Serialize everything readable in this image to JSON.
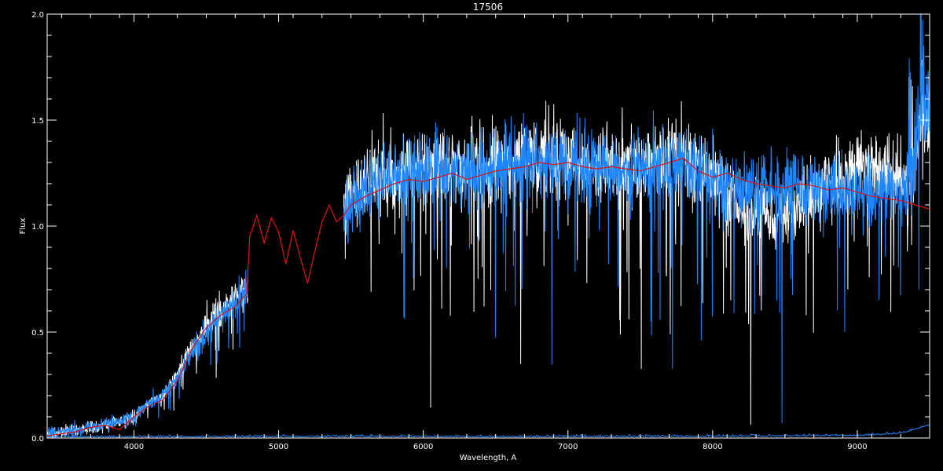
{
  "chart_data": {
    "type": "line",
    "title": "17506",
    "xlabel": "Wavelength, A",
    "ylabel": "Flux",
    "xlim": [
      3400,
      9500
    ],
    "ylim": [
      0.0,
      2.0
    ],
    "x_ticks": [
      4000,
      5000,
      6000,
      7000,
      8000,
      9000
    ],
    "x_tick_labels": [
      "4000",
      "5000",
      "6000",
      "7000",
      "8000",
      "9000"
    ],
    "y_ticks": [
      0.0,
      0.5,
      1.0,
      1.5,
      2.0
    ],
    "y_tick_labels": [
      "0.0",
      "0.5",
      "1.0",
      "1.5",
      "2.0"
    ],
    "grid": false,
    "background": "#000000",
    "series": [
      {
        "color": "#ffffff",
        "style": "noisy spectrum",
        "segments": [
          [
            3400,
            4790
          ],
          [
            5450,
            9500
          ]
        ],
        "x": [
          3400,
          3600,
          3800,
          4000,
          4100,
          4200,
          4300,
          4400,
          4500,
          4600,
          4700,
          4790,
          5450,
          5500,
          5600,
          5700,
          5800,
          5900,
          6000,
          6200,
          6400,
          6600,
          6800,
          6900,
          7000,
          7200,
          7400,
          7600,
          7700,
          7800,
          7900,
          8000,
          8100,
          8200,
          8300,
          8400,
          8500,
          8600,
          8700,
          8800,
          8900,
          9000,
          9100,
          9200,
          9300,
          9400,
          9450,
          9500
        ],
        "y": [
          0.02,
          0.04,
          0.06,
          0.1,
          0.16,
          0.2,
          0.3,
          0.42,
          0.52,
          0.6,
          0.65,
          0.72,
          1.1,
          1.15,
          1.2,
          1.24,
          1.25,
          1.26,
          1.26,
          1.27,
          1.28,
          1.3,
          1.33,
          1.34,
          1.31,
          1.3,
          1.29,
          1.3,
          1.32,
          1.33,
          1.3,
          1.25,
          1.15,
          1.08,
          1.06,
          1.05,
          1.06,
          1.1,
          1.15,
          1.2,
          1.22,
          1.25,
          1.28,
          1.25,
          1.2,
          1.3,
          1.55,
          1.4
        ]
      },
      {
        "color": "#1e86ff",
        "style": "noisy spectrum",
        "segments": [
          [
            3400,
            4790
          ],
          [
            5450,
            9500
          ]
        ],
        "x": [
          3400,
          3600,
          3800,
          4000,
          4100,
          4200,
          4300,
          4400,
          4500,
          4600,
          4700,
          4790,
          5450,
          5500,
          5600,
          5700,
          5800,
          5900,
          6000,
          6200,
          6400,
          6600,
          6800,
          6900,
          7000,
          7200,
          7400,
          7600,
          7700,
          7800,
          7900,
          8000,
          8100,
          8200,
          8300,
          8400,
          8500,
          8600,
          8700,
          8800,
          8900,
          9000,
          9100,
          9200,
          9300,
          9400,
          9450,
          9500
        ],
        "y": [
          0.02,
          0.04,
          0.06,
          0.1,
          0.16,
          0.2,
          0.28,
          0.4,
          0.5,
          0.58,
          0.63,
          0.7,
          1.05,
          1.12,
          1.18,
          1.22,
          1.24,
          1.24,
          1.25,
          1.26,
          1.27,
          1.29,
          1.3,
          1.3,
          1.29,
          1.28,
          1.27,
          1.28,
          1.3,
          1.3,
          1.25,
          1.22,
          1.2,
          1.18,
          1.17,
          1.18,
          1.18,
          1.19,
          1.18,
          1.18,
          1.16,
          1.15,
          1.14,
          1.15,
          1.13,
          1.3,
          1.6,
          1.5
        ]
      },
      {
        "color": "#e01010",
        "style": "smooth model",
        "x": [
          3400,
          3600,
          3700,
          3800,
          3900,
          4000,
          4100,
          4200,
          4300,
          4400,
          4500,
          4600,
          4700,
          4780,
          4800,
          4850,
          4900,
          4950,
          5000,
          5050,
          5100,
          5150,
          5200,
          5250,
          5300,
          5350,
          5400,
          5450,
          5500,
          5600,
          5700,
          5800,
          5900,
          6000,
          6100,
          6200,
          6300,
          6400,
          6500,
          6600,
          6700,
          6800,
          6900,
          7000,
          7100,
          7200,
          7300,
          7400,
          7500,
          7600,
          7700,
          7800,
          7900,
          8000,
          8100,
          8200,
          8300,
          8400,
          8500,
          8600,
          8700,
          8800,
          8900,
          9000,
          9100,
          9200,
          9300,
          9400,
          9500
        ],
        "y": [
          0.01,
          0.03,
          0.05,
          0.06,
          0.04,
          0.1,
          0.15,
          0.18,
          0.27,
          0.42,
          0.52,
          0.58,
          0.62,
          0.68,
          0.95,
          1.05,
          0.92,
          1.04,
          0.97,
          0.82,
          0.98,
          0.85,
          0.73,
          0.88,
          1.02,
          1.1,
          1.02,
          1.05,
          1.1,
          1.14,
          1.17,
          1.2,
          1.22,
          1.21,
          1.23,
          1.25,
          1.22,
          1.24,
          1.26,
          1.27,
          1.28,
          1.3,
          1.29,
          1.3,
          1.28,
          1.27,
          1.28,
          1.27,
          1.26,
          1.28,
          1.3,
          1.32,
          1.26,
          1.23,
          1.25,
          1.22,
          1.2,
          1.19,
          1.18,
          1.2,
          1.19,
          1.17,
          1.18,
          1.16,
          1.14,
          1.13,
          1.12,
          1.1,
          1.08
        ]
      },
      {
        "color": "#1e86ff",
        "style": "error floor",
        "x": [
          3400,
          4000,
          5000,
          6000,
          7000,
          8000,
          8500,
          9000,
          9300,
          9400,
          9500
        ],
        "y": [
          0.003,
          0.004,
          0.005,
          0.005,
          0.005,
          0.006,
          0.008,
          0.01,
          0.02,
          0.04,
          0.06
        ]
      }
    ]
  }
}
